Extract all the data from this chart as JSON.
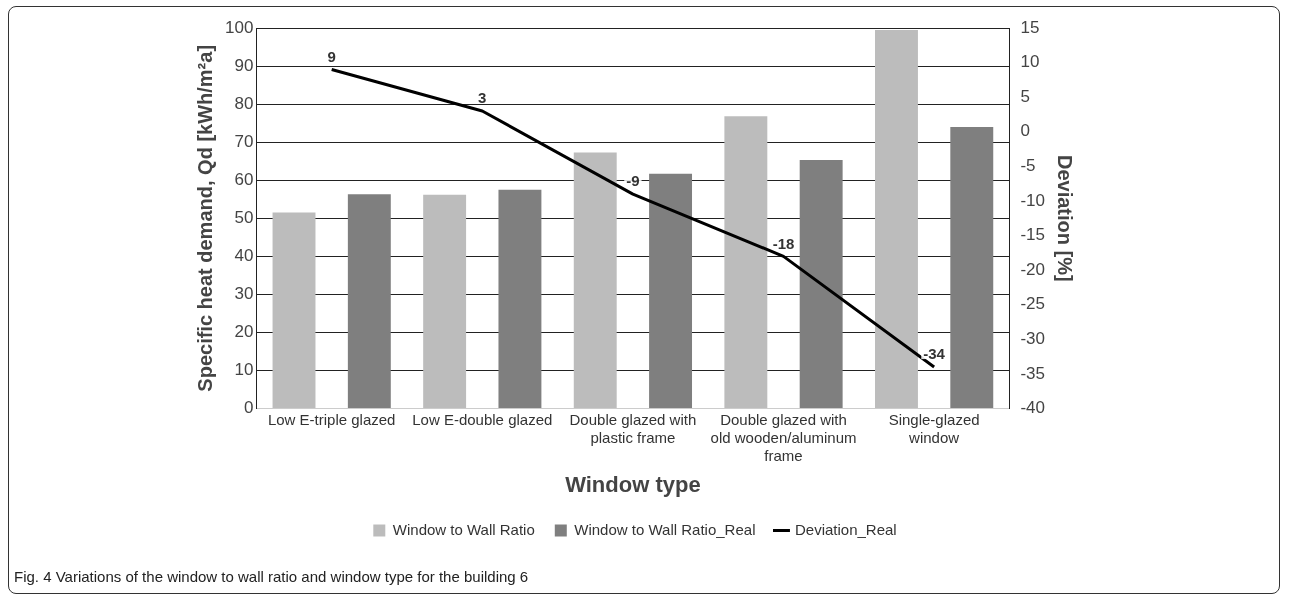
{
  "chart_data": {
    "type": "bar",
    "xlabel": "Window type",
    "ylabel": "Specific heat demand, Qd [kWh/m²a]",
    "y2label": "Deviation [%]",
    "categories": [
      "Low E-triple glazed",
      "Low E-double glazed",
      "Double glazed with plastic frame",
      "Double glazed with old wooden/aluminum frame",
      "Single-glazed window"
    ],
    "series": [
      {
        "name": "Window to Wall Ratio",
        "color": "#bcbcbc",
        "values": [
          51.5,
          56.2,
          67.3,
          76.8,
          99.5
        ]
      },
      {
        "name": "Window to Wall Ratio_Real",
        "color": "#7f7f7f",
        "values": [
          56.3,
          57.5,
          61.7,
          65.3,
          74.0
        ]
      },
      {
        "name": "Deviation_Real",
        "type": "line",
        "axis": "y2",
        "color": "#000000",
        "values": [
          9,
          3,
          -9,
          -18,
          -34
        ],
        "value_labels": [
          "9",
          "3",
          "-9",
          "-18",
          "-34"
        ]
      }
    ],
    "ylim": [
      0,
      100
    ],
    "yticks": [
      0,
      10,
      20,
      30,
      40,
      50,
      60,
      70,
      80,
      90,
      100
    ],
    "y2lim": [
      -40,
      15
    ],
    "y2ticks": [
      -40,
      -35,
      -30,
      -25,
      -20,
      -15,
      -10,
      -5,
      0,
      5,
      10,
      15
    ],
    "grid": "y",
    "legend": "bottom",
    "marker": "none",
    "line_style": "solid",
    "annotations": [
      "Fig. 4 Variations of the window to wall ratio and window type for the building 6"
    ]
  }
}
